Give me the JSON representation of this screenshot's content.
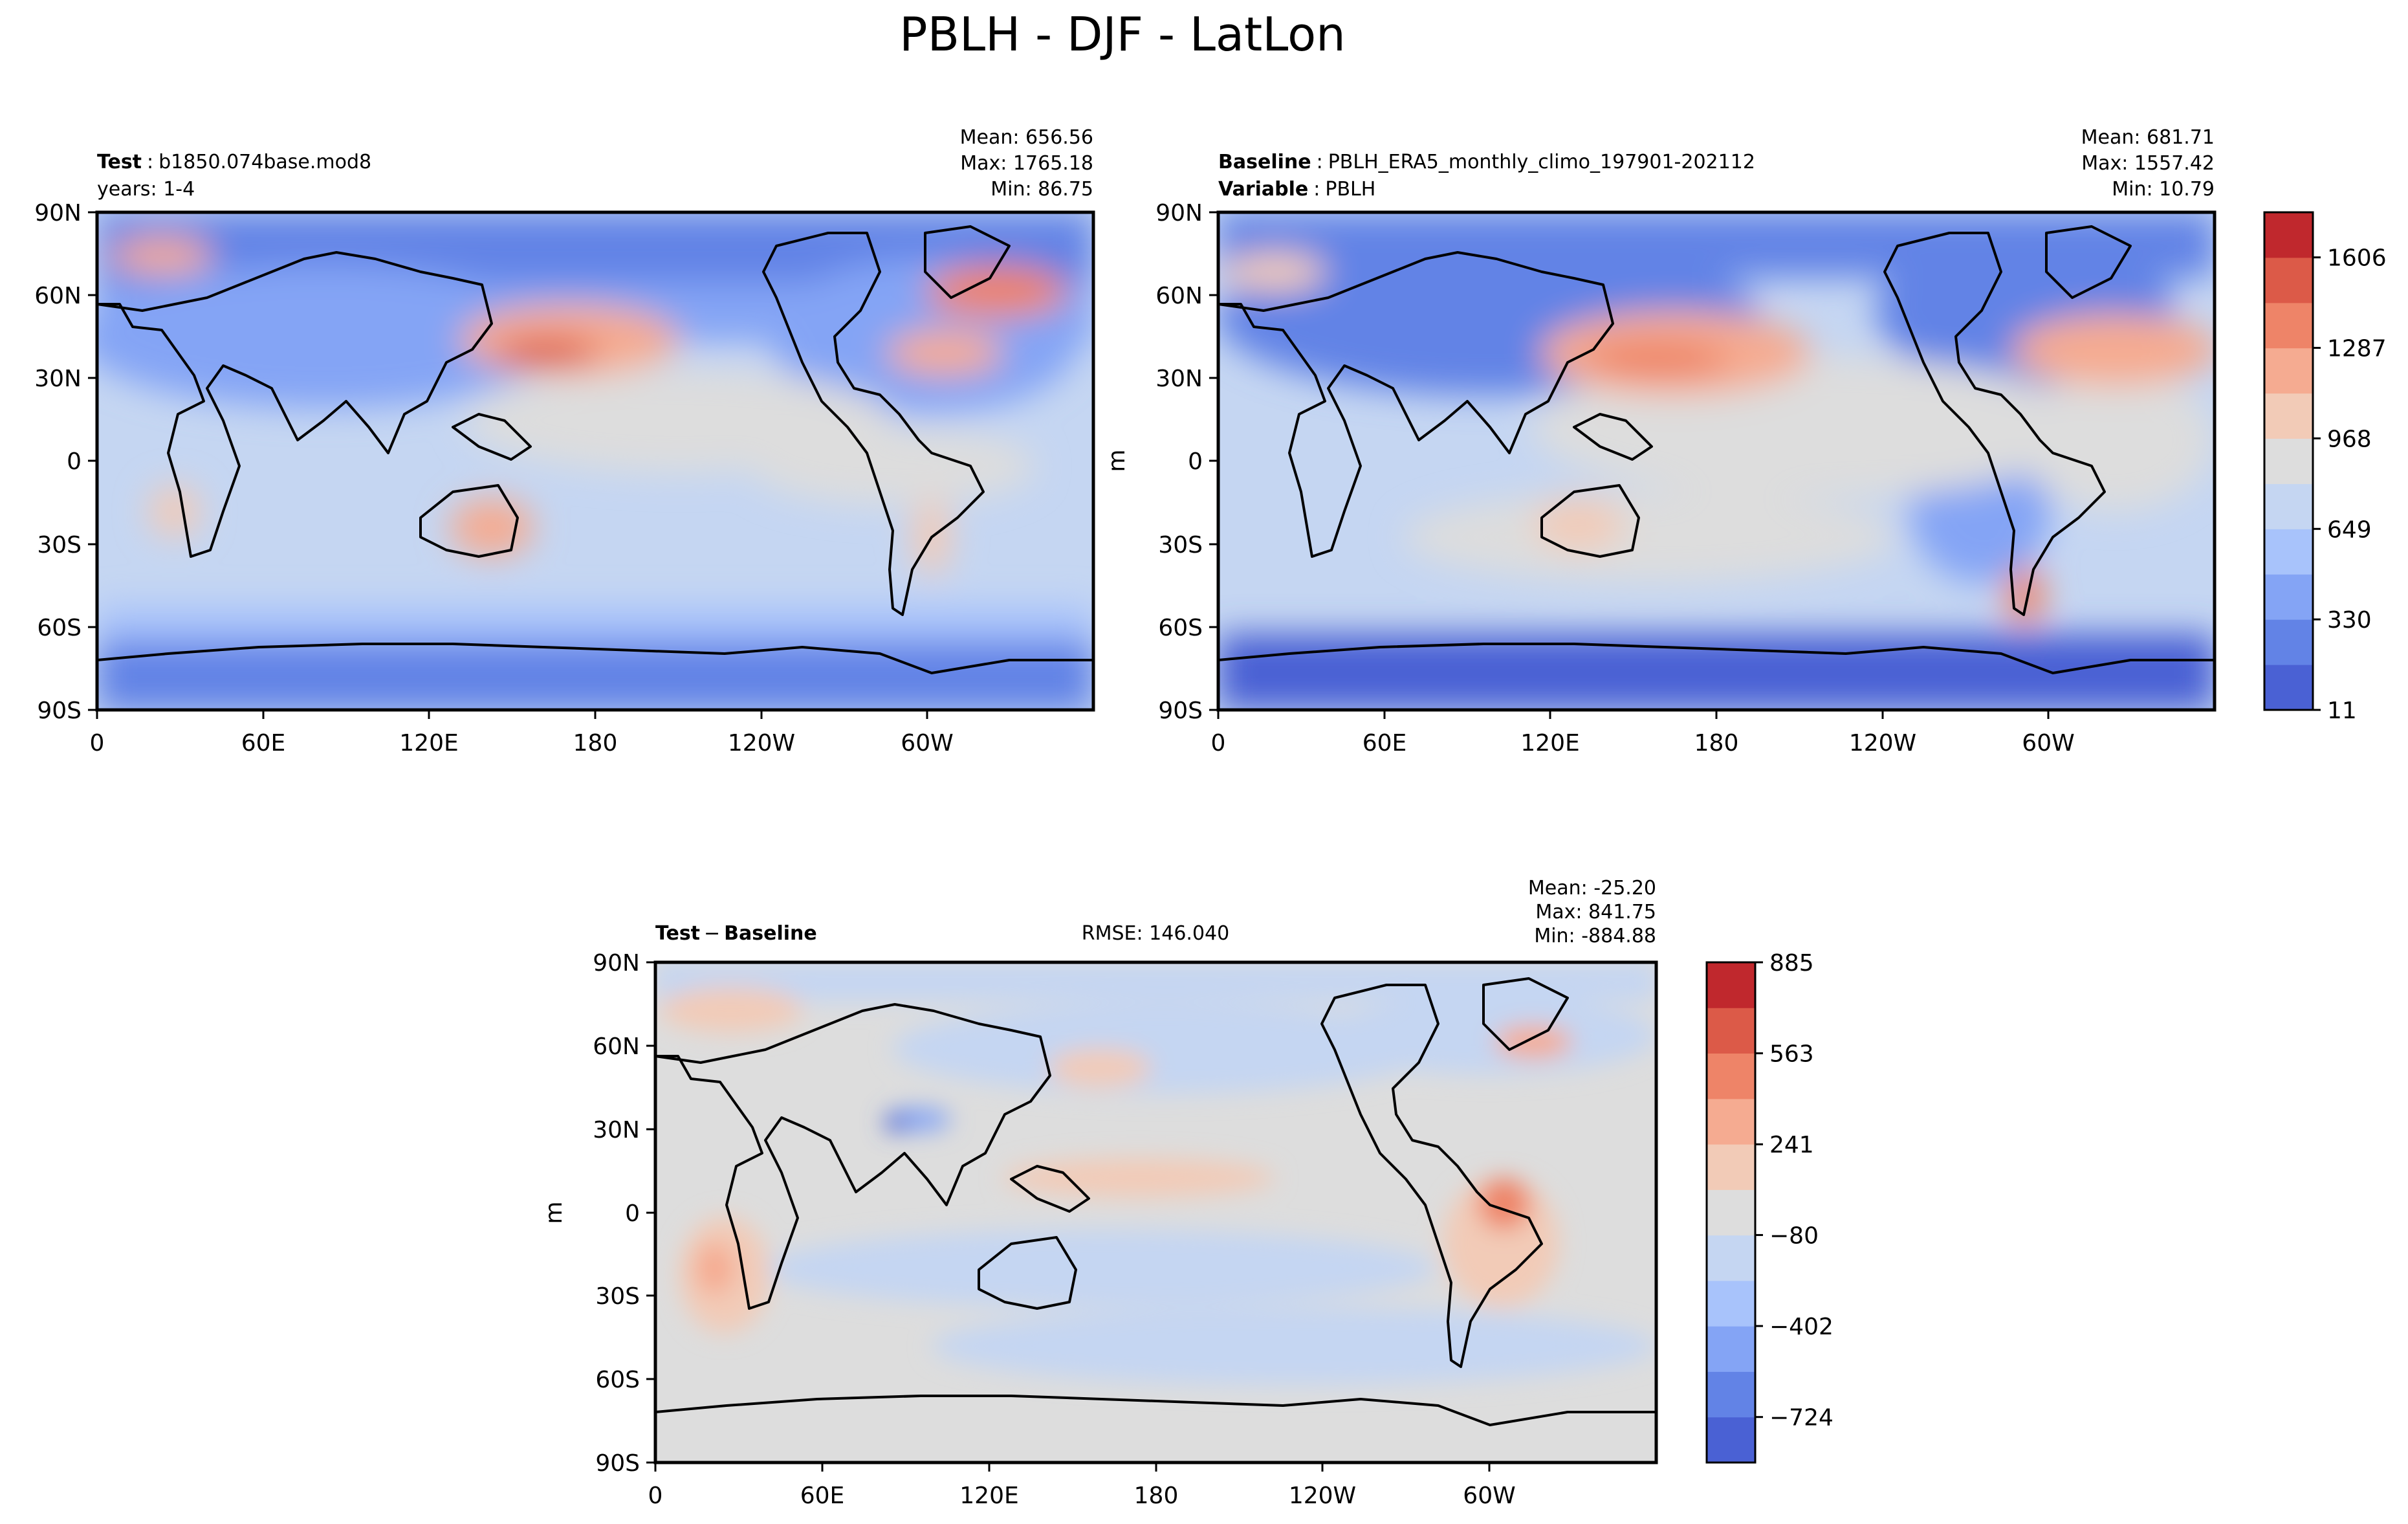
{
  "title": "PBLH - DJF - LatLon",
  "colors": {
    "frame": "#000000",
    "coast": "#000000"
  },
  "lat_ticks": [
    "90N",
    "60N",
    "30N",
    "0",
    "30S",
    "60S",
    "90S"
  ],
  "lon_ticks": [
    "0",
    "60E",
    "120E",
    "180",
    "120W",
    "60W"
  ],
  "units": "m",
  "chart_data": [
    {
      "type": "heatmap",
      "panel": "test",
      "label_bold": "Test",
      "label_sep": ":",
      "label_text": "b1850.074base.mod8",
      "label_line2": "years: 1-4",
      "stats": [
        "Mean: 656.56",
        "Max: 1765.18",
        "Min: 86.75"
      ],
      "mean": 656.56,
      "max": 1765.18,
      "min": 86.75,
      "xlim": [
        0,
        360
      ],
      "ylim": [
        -90,
        90
      ],
      "yticklabels": [
        "90N",
        "60N",
        "30N",
        "0",
        "30S",
        "60S",
        "90S"
      ],
      "xticklabels": [
        "0",
        "60E",
        "120E",
        "180",
        "120W",
        "60W"
      ]
    },
    {
      "type": "heatmap",
      "panel": "baseline",
      "label_bold": "Baseline",
      "label_sep": ":",
      "label_text": "PBLH_ERA5_monthly_climo_197901-202112",
      "label_bold2": "Variable",
      "label_text2": "PBLH",
      "stats": [
        "Mean: 681.71",
        "Max: 1557.42",
        "Min: 10.79"
      ],
      "mean": 681.71,
      "max": 1557.42,
      "min": 10.79,
      "ylabel": "m",
      "xlim": [
        0,
        360
      ],
      "ylim": [
        -90,
        90
      ],
      "yticklabels": [
        "90N",
        "60N",
        "30N",
        "0",
        "30S",
        "60S",
        "90S"
      ],
      "xticklabels": [
        "0",
        "60E",
        "120E",
        "180",
        "120W",
        "60W"
      ],
      "colorbar": {
        "ticks": [
          "1606",
          "1287",
          "968",
          "649",
          "330",
          "11"
        ],
        "tick_values": [
          1606,
          1287,
          968,
          649,
          330,
          11
        ],
        "range": [
          11,
          1765
        ],
        "colors": [
          "#4a61d4",
          "#6283e6",
          "#84a4f5",
          "#a8c3fb",
          "#c5d6f2",
          "#dddddd",
          "#f2cbb7",
          "#f5ab91",
          "#ee8468",
          "#dc5a48",
          "#c0282d"
        ]
      }
    },
    {
      "type": "heatmap",
      "panel": "diff",
      "label_bold": "Test",
      "label_minus": "−",
      "label_bold2": "Baseline",
      "rmse_text": "RMSE: 146.040",
      "rmse": 146.04,
      "stats": [
        "Mean: -25.20",
        "Max: 841.75",
        "Min: -884.88"
      ],
      "mean": -25.2,
      "max": 841.75,
      "min": -884.88,
      "ylabel": "m",
      "xlim": [
        0,
        360
      ],
      "ylim": [
        -90,
        90
      ],
      "yticklabels": [
        "90N",
        "60N",
        "30N",
        "0",
        "30S",
        "60S",
        "90S"
      ],
      "xticklabels": [
        "0",
        "60E",
        "120E",
        "180",
        "120W",
        "60W"
      ],
      "colorbar": {
        "ticks": [
          "885",
          "563",
          "241",
          "−80",
          "−402",
          "−724"
        ],
        "tick_values": [
          885,
          563,
          241,
          -80,
          -402,
          -724
        ],
        "range": [
          -885,
          885
        ],
        "colors": [
          "#4a61d4",
          "#6283e6",
          "#84a4f5",
          "#a8c3fb",
          "#c5d6f2",
          "#dddddd",
          "#f2cbb7",
          "#f5ab91",
          "#ee8468",
          "#dc5a48",
          "#c0282d"
        ]
      }
    }
  ]
}
